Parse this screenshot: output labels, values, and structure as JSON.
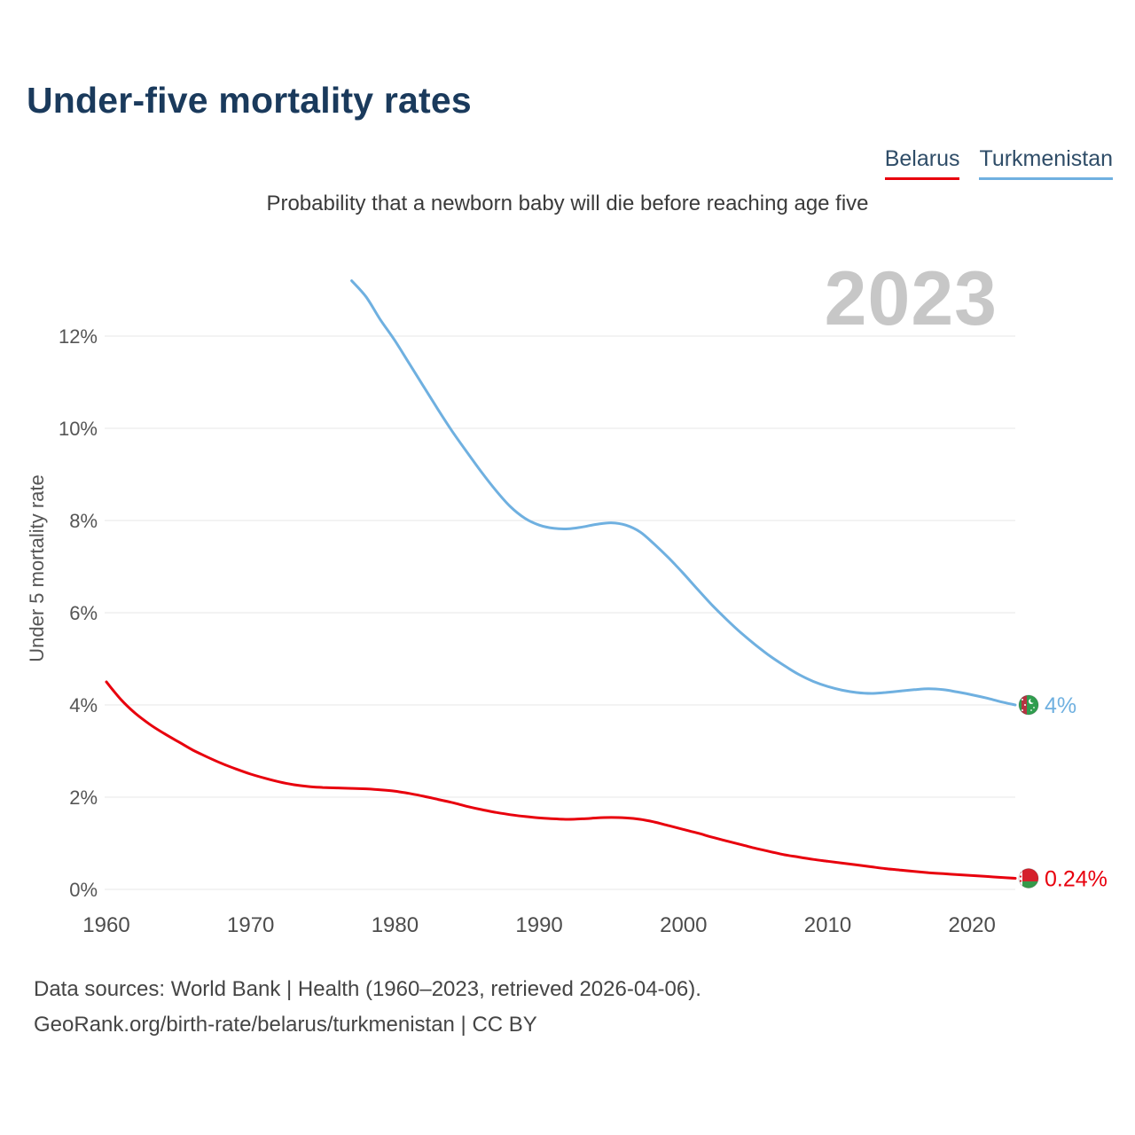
{
  "header": {
    "title": "Under-five mortality rates",
    "subtitle": "Probability that a newborn baby will die before reaching age five",
    "year_watermark": "2023"
  },
  "legend": [
    {
      "label": "Belarus",
      "color": "#e8000d"
    },
    {
      "label": "Turkmenistan",
      "color": "#6fb0e0"
    }
  ],
  "chart_data": {
    "type": "line",
    "title": "Under-five mortality rates",
    "subtitle": "Probability that a newborn baby will die before reaching age five",
    "xlabel": "",
    "ylabel": "Under 5 mortality rate",
    "xlim": [
      1960,
      2026
    ],
    "ylim": [
      0,
      13.5
    ],
    "grid": true,
    "legend_position": "top-right",
    "x_ticks": [
      {
        "value": 1960,
        "label": "1960"
      },
      {
        "value": 1970,
        "label": "1970"
      },
      {
        "value": 1980,
        "label": "1980"
      },
      {
        "value": 1990,
        "label": "1990"
      },
      {
        "value": 2000,
        "label": "2000"
      },
      {
        "value": 2010,
        "label": "2010"
      },
      {
        "value": 2020,
        "label": "2020"
      }
    ],
    "y_ticks": [
      {
        "value": 0,
        "label": "0%"
      },
      {
        "value": 2,
        "label": "2%"
      },
      {
        "value": 4,
        "label": "4%"
      },
      {
        "value": 6,
        "label": "6%"
      },
      {
        "value": 8,
        "label": "8%"
      },
      {
        "value": 10,
        "label": "10%"
      },
      {
        "value": 12,
        "label": "12%"
      }
    ],
    "series": [
      {
        "name": "Turkmenistan",
        "color": "#6fb0e0",
        "end_label": "4%",
        "flag": "turkmenistan",
        "points": [
          [
            1977,
            13.2
          ],
          [
            1978,
            12.85
          ],
          [
            1979,
            12.35
          ],
          [
            1980,
            11.9
          ],
          [
            1981,
            11.4
          ],
          [
            1982,
            10.9
          ],
          [
            1983,
            10.4
          ],
          [
            1984,
            9.92
          ],
          [
            1985,
            9.48
          ],
          [
            1986,
            9.05
          ],
          [
            1987,
            8.65
          ],
          [
            1988,
            8.3
          ],
          [
            1989,
            8.05
          ],
          [
            1990,
            7.9
          ],
          [
            1991,
            7.83
          ],
          [
            1992,
            7.82
          ],
          [
            1993,
            7.86
          ],
          [
            1994,
            7.92
          ],
          [
            1995,
            7.95
          ],
          [
            1996,
            7.9
          ],
          [
            1997,
            7.75
          ],
          [
            1998,
            7.48
          ],
          [
            1999,
            7.18
          ],
          [
            2000,
            6.85
          ],
          [
            2001,
            6.5
          ],
          [
            2002,
            6.16
          ],
          [
            2003,
            5.85
          ],
          [
            2004,
            5.56
          ],
          [
            2005,
            5.3
          ],
          [
            2006,
            5.06
          ],
          [
            2007,
            4.85
          ],
          [
            2008,
            4.66
          ],
          [
            2009,
            4.51
          ],
          [
            2010,
            4.4
          ],
          [
            2011,
            4.32
          ],
          [
            2012,
            4.27
          ],
          [
            2013,
            4.25
          ],
          [
            2014,
            4.27
          ],
          [
            2015,
            4.3
          ],
          [
            2016,
            4.33
          ],
          [
            2017,
            4.35
          ],
          [
            2018,
            4.33
          ],
          [
            2019,
            4.28
          ],
          [
            2020,
            4.22
          ],
          [
            2021,
            4.15
          ],
          [
            2022,
            4.07
          ],
          [
            2023,
            4.0
          ]
        ]
      },
      {
        "name": "Belarus",
        "color": "#e8000d",
        "end_label": "0.24%",
        "flag": "belarus",
        "points": [
          [
            1960,
            4.5
          ],
          [
            1961,
            4.12
          ],
          [
            1962,
            3.82
          ],
          [
            1963,
            3.58
          ],
          [
            1964,
            3.38
          ],
          [
            1965,
            3.2
          ],
          [
            1966,
            3.02
          ],
          [
            1967,
            2.87
          ],
          [
            1968,
            2.73
          ],
          [
            1969,
            2.61
          ],
          [
            1970,
            2.5
          ],
          [
            1971,
            2.41
          ],
          [
            1972,
            2.33
          ],
          [
            1973,
            2.27
          ],
          [
            1974,
            2.23
          ],
          [
            1975,
            2.21
          ],
          [
            1976,
            2.2
          ],
          [
            1977,
            2.19
          ],
          [
            1978,
            2.18
          ],
          [
            1979,
            2.16
          ],
          [
            1980,
            2.13
          ],
          [
            1981,
            2.08
          ],
          [
            1982,
            2.02
          ],
          [
            1983,
            1.95
          ],
          [
            1984,
            1.88
          ],
          [
            1985,
            1.8
          ],
          [
            1986,
            1.73
          ],
          [
            1987,
            1.67
          ],
          [
            1988,
            1.62
          ],
          [
            1989,
            1.58
          ],
          [
            1990,
            1.55
          ],
          [
            1991,
            1.53
          ],
          [
            1992,
            1.52
          ],
          [
            1993,
            1.53
          ],
          [
            1994,
            1.55
          ],
          [
            1995,
            1.56
          ],
          [
            1996,
            1.55
          ],
          [
            1997,
            1.52
          ],
          [
            1998,
            1.46
          ],
          [
            1999,
            1.38
          ],
          [
            2000,
            1.3
          ],
          [
            2001,
            1.22
          ],
          [
            2002,
            1.13
          ],
          [
            2003,
            1.05
          ],
          [
            2004,
            0.97
          ],
          [
            2005,
            0.89
          ],
          [
            2006,
            0.82
          ],
          [
            2007,
            0.75
          ],
          [
            2008,
            0.7
          ],
          [
            2009,
            0.65
          ],
          [
            2010,
            0.61
          ],
          [
            2011,
            0.57
          ],
          [
            2012,
            0.53
          ],
          [
            2013,
            0.49
          ],
          [
            2014,
            0.45
          ],
          [
            2015,
            0.42
          ],
          [
            2016,
            0.39
          ],
          [
            2017,
            0.36
          ],
          [
            2018,
            0.34
          ],
          [
            2019,
            0.32
          ],
          [
            2020,
            0.3
          ],
          [
            2021,
            0.28
          ],
          [
            2022,
            0.26
          ],
          [
            2023,
            0.24
          ]
        ]
      }
    ]
  },
  "footer": {
    "line1": "Data sources: World Bank | Health (1960–2023, retrieved 2026-04-06).",
    "line2": "GeoRank.org/birth-rate/belarus/turkmenistan | CC BY"
  }
}
